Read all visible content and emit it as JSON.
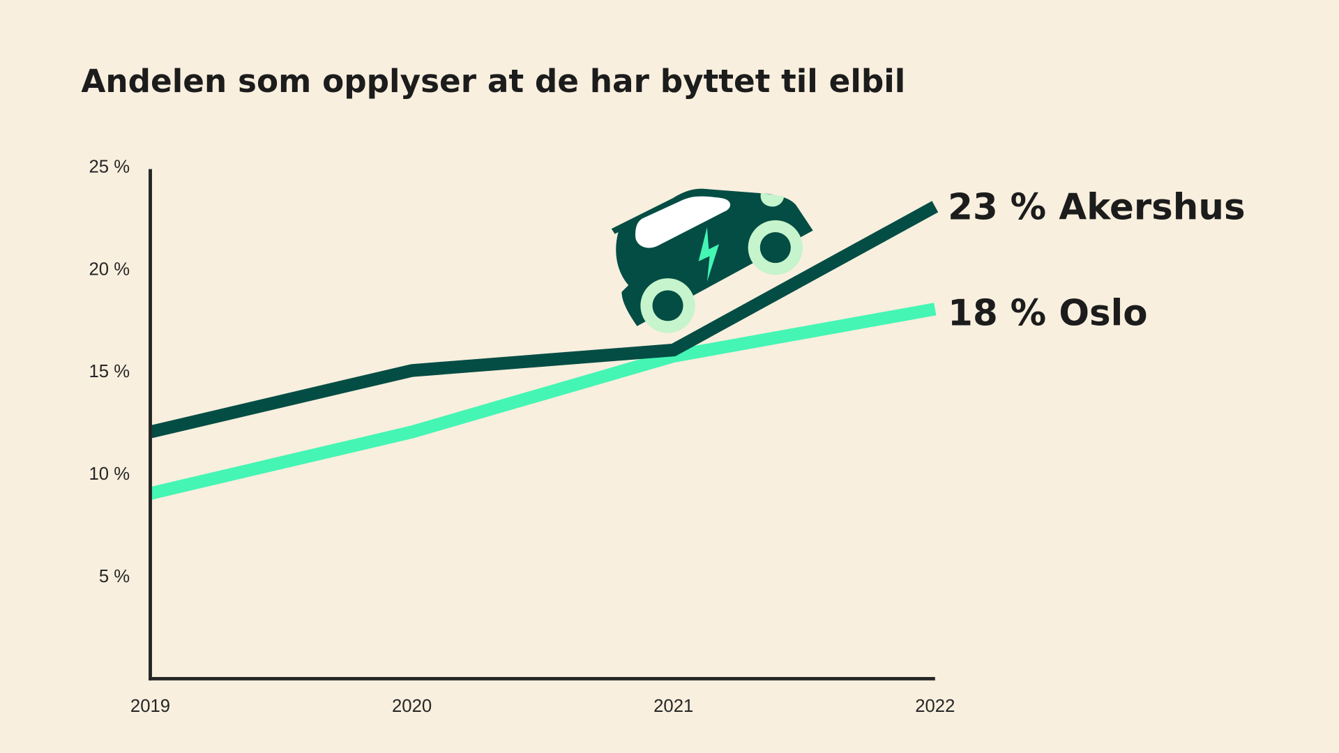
{
  "chart_data": {
    "type": "line",
    "title": "Andelen som opplyser at de har byttet til elbil",
    "xlabel": "",
    "ylabel": "",
    "x": [
      "2019",
      "2020",
      "2021",
      "2022"
    ],
    "ylim": [
      0,
      25
    ],
    "y_ticks": [
      "5 %",
      "10 %",
      "15 %",
      "20 %",
      "25 %"
    ],
    "y_tick_values": [
      5,
      10,
      15,
      20,
      25
    ],
    "grid": false,
    "series": [
      {
        "name": "Akershus",
        "values": [
          12,
          15,
          16,
          23
        ],
        "color": "#034d44",
        "end_label": "23 %"
      },
      {
        "name": "Oslo",
        "values": [
          9,
          12,
          15.7,
          18
        ],
        "color": "#45f5b4",
        "end_label": "18 %"
      }
    ]
  },
  "illustration": {
    "icon": "electric-car-icon",
    "colors": {
      "body": "#034d44",
      "wheel_ring": "#c6f4cc",
      "bolt": "#45f5b4"
    }
  },
  "background": "#f8efde"
}
